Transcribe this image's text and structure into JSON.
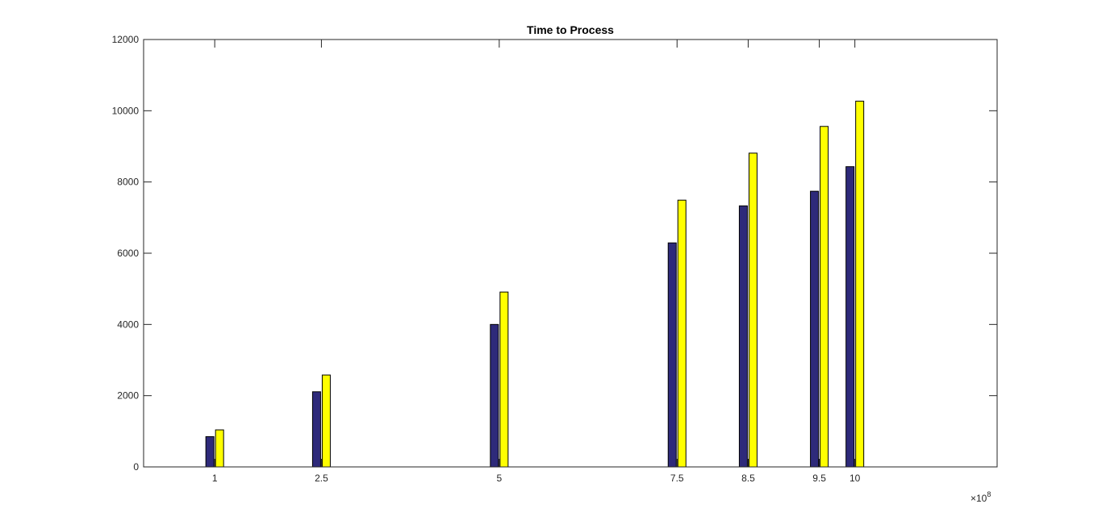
{
  "chart_data": {
    "type": "bar",
    "title": "Time to Process",
    "xlabel": "",
    "ylabel": "",
    "x": [
      1,
      2.5,
      5,
      7.5,
      8.5,
      9.5,
      10
    ],
    "x_tick_labels": [
      "1",
      "2.5",
      "5",
      "7.5",
      "8.5",
      "9.5",
      "10"
    ],
    "x_exponent_label": "×10",
    "x_exponent_power": "8",
    "xlim": [
      0,
      12
    ],
    "ylim": [
      0,
      12000
    ],
    "y_ticks": [
      0,
      2000,
      4000,
      6000,
      8000,
      10000,
      12000
    ],
    "y_tick_labels": [
      "0",
      "2000",
      "4000",
      "6000",
      "8000",
      "10000",
      "12000"
    ],
    "grid": false,
    "legend": "none",
    "series": [
      {
        "color": "#2e2a7a",
        "values": [
          850,
          2110,
          4000,
          6290,
          7330,
          7740,
          8430
        ]
      },
      {
        "color": "#ffff00",
        "values": [
          1040,
          2580,
          4910,
          7490,
          8810,
          9560,
          10270
        ]
      }
    ]
  }
}
